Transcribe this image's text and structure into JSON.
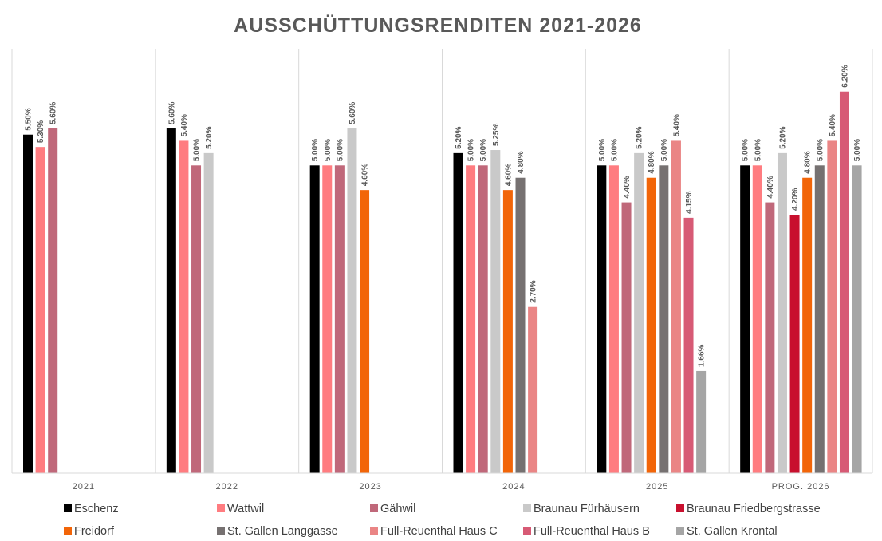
{
  "chart_data": {
    "type": "bar",
    "title": "AUSSCHÜTTUNGSRENDITEN 2021-2026",
    "xlabel": "",
    "ylabel": "",
    "ylim": [
      0,
      7
    ],
    "grid": false,
    "legend": "bottom",
    "categories": [
      "2021",
      "2022",
      "2023",
      "2024",
      "2025",
      "PROG. 2026"
    ],
    "series": [
      {
        "name": "Eschenz",
        "color": "#000000",
        "values": [
          5.5,
          5.6,
          5.0,
          5.2,
          5.0,
          5.0
        ],
        "labels": [
          "5.50%",
          "5.60%",
          "5.00%",
          "5.20%",
          "5.00%",
          "5.00%"
        ]
      },
      {
        "name": "Wattwil",
        "color": "#FF7C80",
        "values": [
          5.3,
          5.4,
          5.0,
          5.0,
          5.0,
          5.0
        ],
        "labels": [
          "5.30%",
          "5.40%",
          "5.00%",
          "5.00%",
          "5.00%",
          "5.00%"
        ]
      },
      {
        "name": "Gähwil",
        "color": "#C0687A",
        "values": [
          5.6,
          5.0,
          5.0,
          5.0,
          4.4,
          4.4
        ],
        "labels": [
          "5.60%",
          "5.00%",
          "5.00%",
          "5.00%",
          "4.40%",
          "4.40%"
        ]
      },
      {
        "name": "Braunau Fürhäusern",
        "color": "#C9C9C9",
        "values": [
          null,
          5.2,
          5.6,
          5.25,
          5.2,
          5.2
        ],
        "labels": [
          "",
          "5.20%",
          "5.60%",
          "5.25%",
          "5.20%",
          "5.20%"
        ]
      },
      {
        "name": "Braunau Friedbergstrasse",
        "color": "#C8102E",
        "values": [
          null,
          null,
          null,
          null,
          null,
          4.2
        ],
        "labels": [
          "",
          "",
          "",
          "",
          "",
          "4.20%"
        ]
      },
      {
        "name": "Freidorf",
        "color": "#F26508",
        "values": [
          null,
          null,
          4.6,
          4.6,
          4.8,
          4.8
        ],
        "labels": [
          "",
          "",
          "4.60%",
          "4.60%",
          "4.80%",
          "4.80%"
        ]
      },
      {
        "name": "St. Gallen Langgasse",
        "color": "#767171",
        "values": [
          null,
          null,
          null,
          4.8,
          5.0,
          5.0
        ],
        "labels": [
          "",
          "",
          "",
          "4.80%",
          "5.00%",
          "5.00%"
        ]
      },
      {
        "name": "Full-Reuenthal Haus C",
        "color": "#EA8585",
        "values": [
          null,
          null,
          null,
          2.7,
          5.4,
          5.4
        ],
        "labels": [
          "",
          "",
          "",
          "2.70%",
          "5.40%",
          "5.40%"
        ]
      },
      {
        "name": "Full-Reuenthal Haus B",
        "color": "#D75A75",
        "values": [
          null,
          null,
          null,
          null,
          4.15,
          6.2
        ],
        "labels": [
          "",
          "",
          "",
          "",
          "4.15%",
          "6.20%"
        ]
      },
      {
        "name": "St. Gallen Krontal",
        "color": "#A5A5A5",
        "values": [
          null,
          null,
          null,
          null,
          1.66,
          5.0
        ],
        "labels": [
          "",
          "",
          "",
          "",
          "1.66%",
          "5.00%"
        ]
      }
    ]
  }
}
